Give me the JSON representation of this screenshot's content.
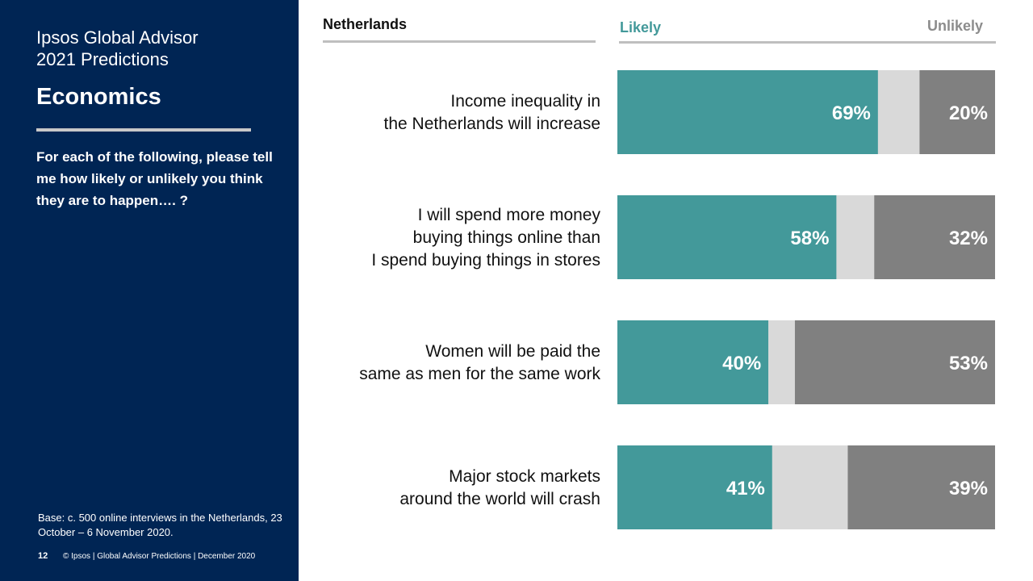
{
  "sidebar": {
    "app_title_line1": "Ipsos Global Advisor",
    "app_title_line2": "2021 Predictions",
    "section_title": "Economics",
    "question": "For each of the following, please tell me how likely or unlikely you think they are to happen…. ?",
    "base_note": "Base: c. 500 online interviews in the Netherlands,  23 October – 6 November 2020.",
    "page_number": "12",
    "footer": "© Ipsos | Global Advisor Predictions | December 2020",
    "background_color": "#002554"
  },
  "chart_data": {
    "type": "bar",
    "stacked": true,
    "orientation": "horizontal",
    "title": "Netherlands",
    "legend": [
      "Likely",
      "Unlikely"
    ],
    "legend_placement": "top",
    "categories": [
      [
        "Income inequality in",
        "the Netherlands will increase"
      ],
      [
        "I will spend more money",
        "buying things online than",
        "I spend buying things in stores"
      ],
      [
        "Women will be paid the",
        "same as men for the same work"
      ],
      [
        "Major stock markets",
        "around the world will crash"
      ]
    ],
    "series": [
      {
        "name": "Likely",
        "values": [
          69,
          58,
          40,
          41
        ],
        "labels": [
          "69%",
          "58%",
          "40%",
          "41%"
        ],
        "color": "#43999a"
      },
      {
        "values": [
          11,
          10,
          7,
          20
        ],
        "color": "#d9d9d9"
      },
      {
        "name": "Unlikely",
        "values": [
          20,
          32,
          53,
          39
        ],
        "labels": [
          "20%",
          "32%",
          "53%",
          "39%"
        ],
        "color": "#808080"
      }
    ],
    "xlim": [
      0,
      100
    ]
  }
}
